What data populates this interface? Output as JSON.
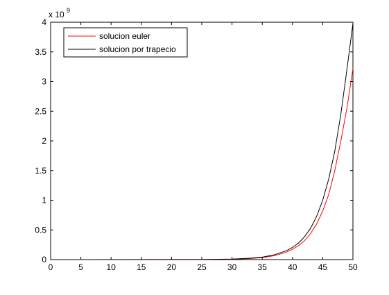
{
  "chart_data": {
    "type": "line",
    "title": "",
    "xlabel": "",
    "ylabel": "",
    "xlim": [
      0,
      50
    ],
    "ylim": [
      0,
      4
    ],
    "y_exponent_label": "x 10",
    "y_exponent_power": "9",
    "x_ticks": [
      0,
      5,
      10,
      15,
      20,
      25,
      30,
      35,
      40,
      45,
      50
    ],
    "y_ticks": [
      0,
      0.5,
      1,
      1.5,
      2,
      2.5,
      3,
      3.5,
      4
    ],
    "grid": false,
    "legend_position": "top-left",
    "series": [
      {
        "name": "solucion euler",
        "color": "#ff0000",
        "x": [
          0,
          25,
          30,
          33,
          35,
          37,
          39,
          40,
          41,
          42,
          43,
          44,
          45,
          46,
          47,
          48,
          49,
          50
        ],
        "y": [
          0,
          0.001,
          0.007,
          0.018,
          0.033,
          0.065,
          0.125,
          0.175,
          0.235,
          0.32,
          0.44,
          0.6,
          0.82,
          1.1,
          1.5,
          2.0,
          2.55,
          3.22
        ]
      },
      {
        "name": "solucion por trapecio",
        "color": "#000000",
        "x": [
          0,
          25,
          30,
          33,
          35,
          37,
          39,
          40,
          41,
          42,
          43,
          44,
          45,
          46,
          47,
          48,
          49,
          50
        ],
        "y": [
          0,
          0.001,
          0.009,
          0.023,
          0.042,
          0.08,
          0.15,
          0.205,
          0.28,
          0.385,
          0.53,
          0.73,
          1.0,
          1.36,
          1.83,
          2.45,
          3.2,
          3.98
        ]
      }
    ]
  }
}
